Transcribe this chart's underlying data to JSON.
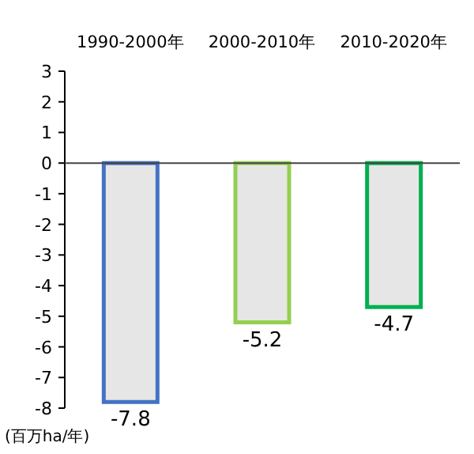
{
  "chart_data": {
    "type": "bar",
    "categories": [
      "1990-2000年",
      "2000-2010年",
      "2010-2020年"
    ],
    "values": [
      -7.8,
      -5.2,
      -4.7
    ],
    "colors": [
      "#4472c4",
      "#92d050",
      "#00b050"
    ],
    "ylabel": "(百万ha/年)",
    "ylim": [
      -8,
      3
    ],
    "yticks": [
      3,
      2,
      1,
      0,
      -1,
      -2,
      -3,
      -4,
      -5,
      -6,
      -7,
      -8
    ],
    "data_labels": true
  }
}
